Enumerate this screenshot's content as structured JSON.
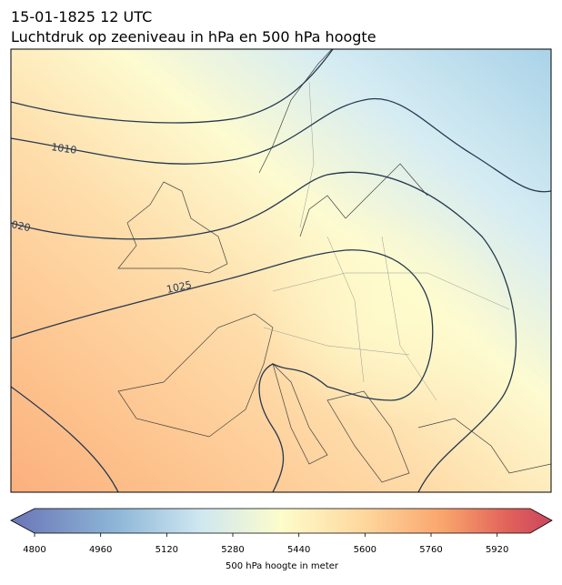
{
  "header": {
    "title": "15-01-1825 12 UTC",
    "subtitle": "Luchtdruk op zeeniveau in hPa en 500 hPa hoogte"
  },
  "map": {
    "contour_labels": [
      "1010",
      "020",
      "1025"
    ]
  },
  "colorbar": {
    "label": "500 hPa hoogte in meter",
    "lim": [
      4800,
      6000
    ],
    "ticks": [
      4800,
      4960,
      5120,
      5280,
      5440,
      5600,
      5760,
      5920
    ]
  }
}
